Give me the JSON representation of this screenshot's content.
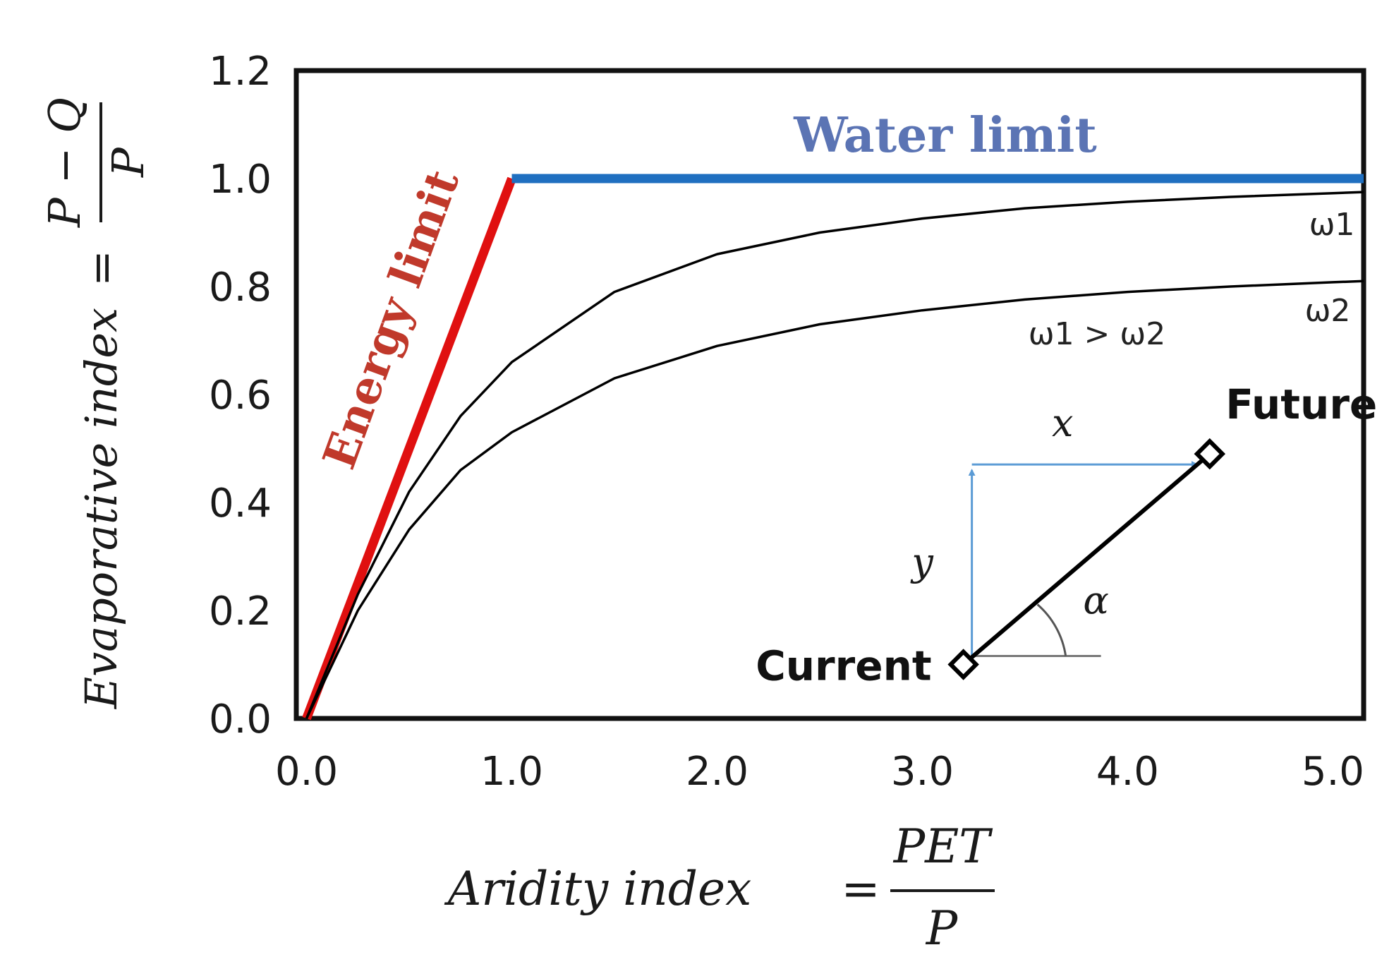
{
  "chart_data": {
    "type": "line",
    "title": "",
    "xlabel": "Aridity index = PET / P",
    "ylabel": "Evaporative index = (P − Q) / P",
    "xlim": [
      -0.05,
      5.15
    ],
    "ylim": [
      0,
      1.2
    ],
    "x_ticks": [
      "0.0",
      "1.0",
      "2.0",
      "3.0",
      "4.0",
      "5.0"
    ],
    "y_ticks": [
      "0.0",
      "0.2",
      "0.4",
      "0.6",
      "0.8",
      "1.0",
      "1.2"
    ],
    "x_label": {
      "lhs": "Aridity index",
      "eq": "=",
      "num": "PET",
      "den": "P"
    },
    "y_label": {
      "lhs": "Evaporative index",
      "eq": "=",
      "num": "P − Q",
      "den": "P"
    },
    "series": [
      {
        "name": "Energy limit",
        "color": "#e01010",
        "x": [
          0.0,
          1.0
        ],
        "y": [
          0.0,
          1.0
        ]
      },
      {
        "name": "Water limit",
        "color": "#1f6fc0",
        "x": [
          1.0,
          5.15
        ],
        "y": [
          1.0,
          1.0
        ]
      },
      {
        "name": "ω1",
        "color": "#000000",
        "x": [
          0,
          0.25,
          0.5,
          0.75,
          1.0,
          1.5,
          2.0,
          2.5,
          3.0,
          3.5,
          4.0,
          4.5,
          5.0,
          5.15
        ],
        "y": [
          0,
          0.23,
          0.42,
          0.56,
          0.66,
          0.79,
          0.86,
          0.9,
          0.926,
          0.945,
          0.957,
          0.966,
          0.973,
          0.975
        ]
      },
      {
        "name": "ω2",
        "color": "#000000",
        "x": [
          0,
          0.25,
          0.5,
          0.75,
          1.0,
          1.5,
          2.0,
          2.5,
          3.0,
          3.5,
          4.0,
          4.5,
          5.0,
          5.15
        ],
        "y": [
          0,
          0.2,
          0.35,
          0.46,
          0.53,
          0.63,
          0.69,
          0.73,
          0.756,
          0.776,
          0.79,
          0.8,
          0.808,
          0.81
        ]
      }
    ],
    "annotations": {
      "energy_limit": "Energy limit",
      "water_limit": "Water limit",
      "omega1": "ω1",
      "omega2": "ω2",
      "omega_relation": "ω1 > ω2",
      "current": "Current",
      "future": "Future",
      "x_component": "x",
      "y_component": "y",
      "angle": "α"
    },
    "points": {
      "current": {
        "x": 3.2,
        "y": 0.1
      },
      "future": {
        "x": 4.4,
        "y": 0.49
      }
    }
  },
  "colors": {
    "energy_text": "#c0392b",
    "water_text": "#5b74b4",
    "vector_blue": "#5b9bd5"
  }
}
